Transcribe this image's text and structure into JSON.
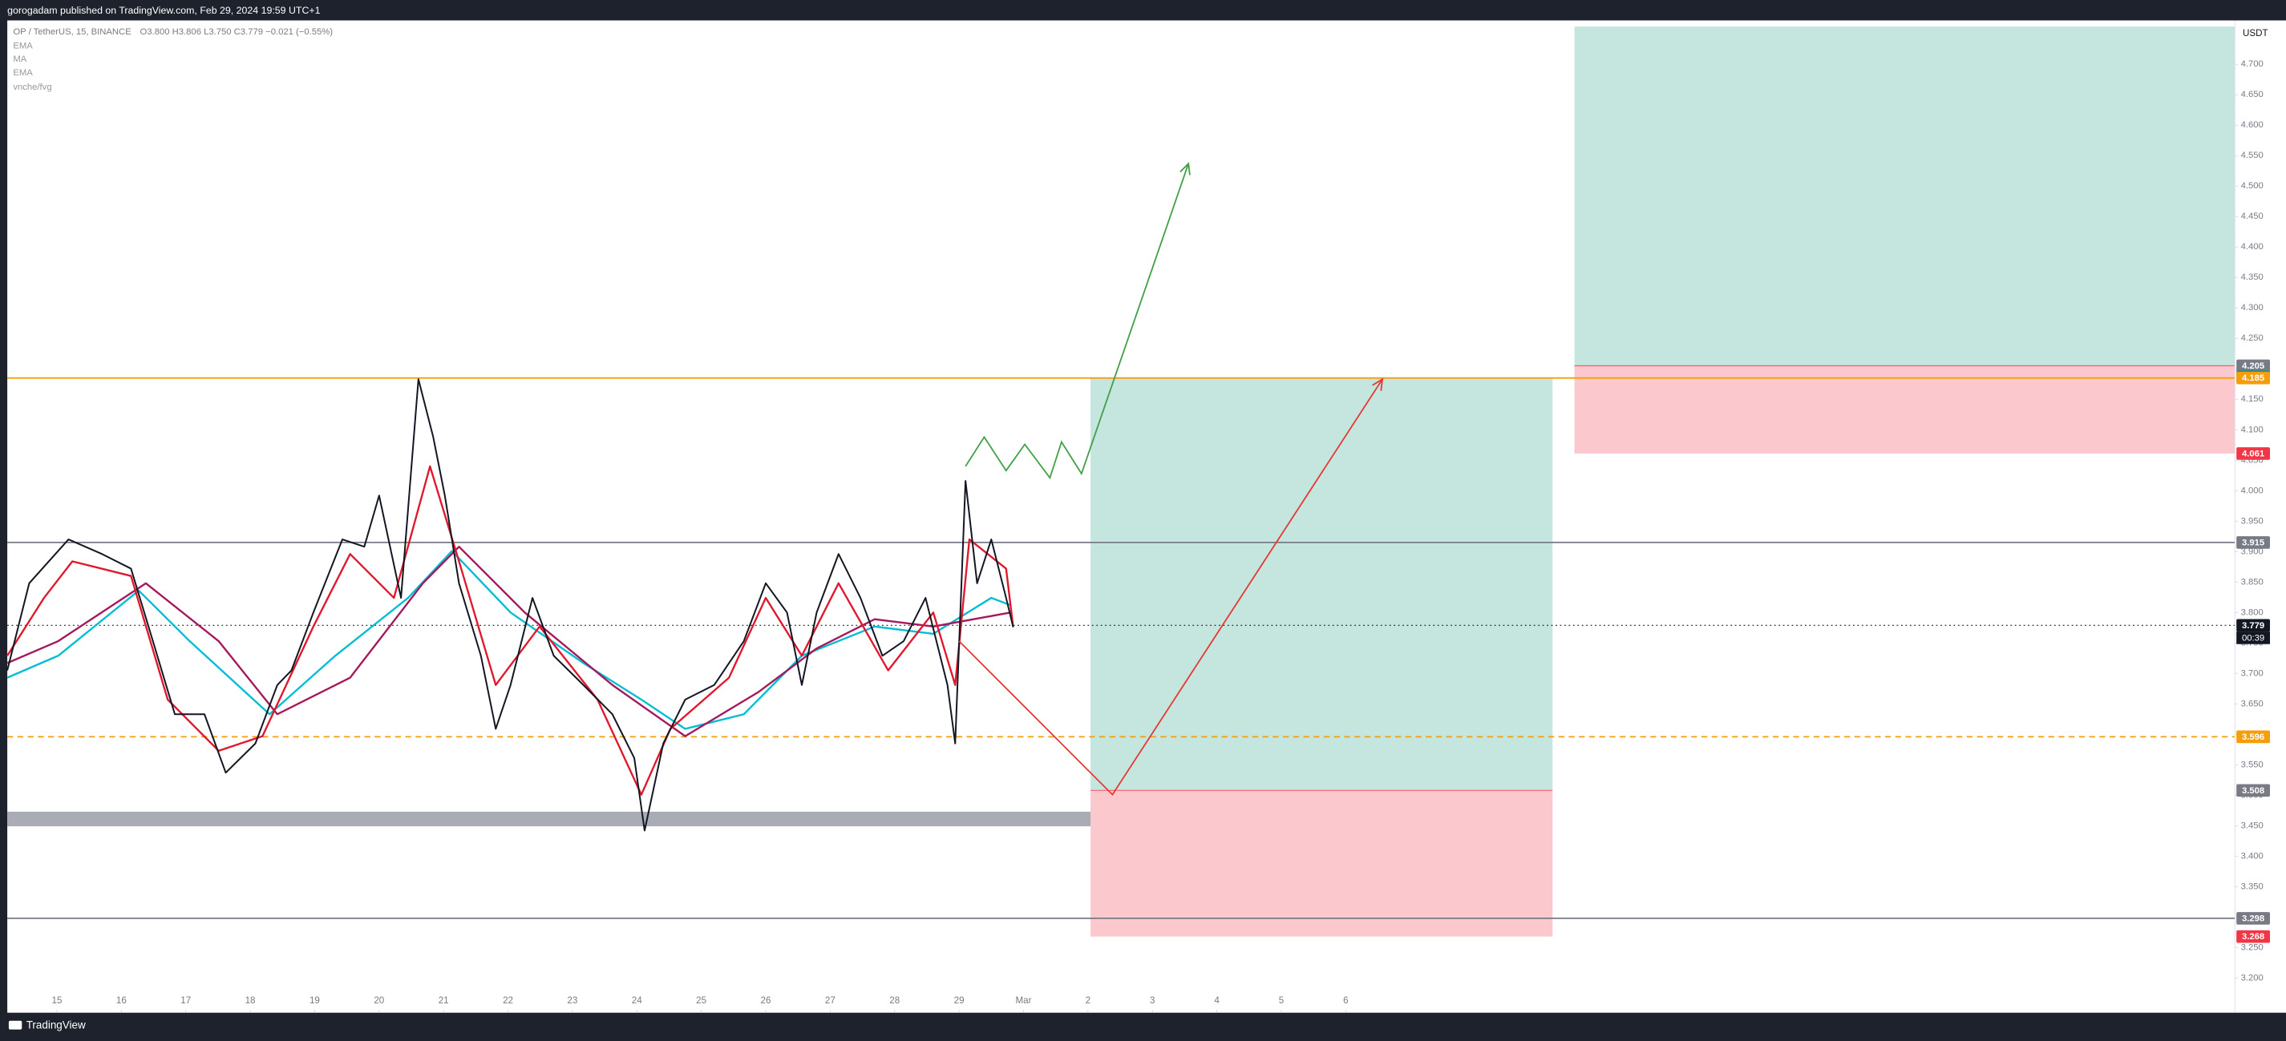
{
  "header": {
    "text": "gorogadam published on TradingView.com, Feb 29, 2024 19:59 UTC+1"
  },
  "footer": {
    "brand": "TradingView"
  },
  "chart_data": {
    "type": "line",
    "title": "OP / TetherUS, 15, BINANCE",
    "status": "O3.800 H3.806 L3.750 C3.779 −0.021 (−0.55%)",
    "extra_indicator": "vnche/fvg",
    "y_unit": "USDT",
    "countdown": "00:39",
    "xlim": [
      14.23,
      48.8
    ],
    "ylim": [
      3.143,
      4.772
    ],
    "xticks": [
      15,
      16,
      17,
      18,
      19,
      20,
      21,
      22,
      23,
      24,
      25,
      26,
      27,
      28,
      29,
      {
        "value": 30,
        "label": "Mar"
      },
      {
        "value": 31,
        "label": "2"
      },
      {
        "value": 32,
        "label": "3"
      },
      {
        "value": 33,
        "label": "4"
      },
      {
        "value": 34,
        "label": "5"
      },
      {
        "value": 35,
        "label": "6"
      }
    ],
    "yticks": [
      {
        "value": 3.2,
        "label": "3.200"
      },
      {
        "value": 3.25,
        "label": "3.250"
      },
      {
        "value": 3.3,
        "label": "3.300"
      },
      {
        "value": 3.35,
        "label": "3.350"
      },
      {
        "value": 3.4,
        "label": "3.400"
      },
      {
        "value": 3.45,
        "label": "3.450"
      },
      {
        "value": 3.5,
        "label": "3.500"
      },
      {
        "value": 3.55,
        "label": "3.550"
      },
      {
        "value": 3.6,
        "label": "3.600"
      },
      {
        "value": 3.65,
        "label": "3.650"
      },
      {
        "value": 3.7,
        "label": "3.700"
      },
      {
        "value": 3.75,
        "label": "3.750"
      },
      {
        "value": 3.8,
        "label": "3.800"
      },
      {
        "value": 3.85,
        "label": "3.850"
      },
      {
        "value": 3.9,
        "label": "3.900"
      },
      {
        "value": 3.95,
        "label": "3.950"
      },
      {
        "value": 4.0,
        "label": "4.000"
      },
      {
        "value": 4.05,
        "label": "4.050"
      },
      {
        "value": 4.1,
        "label": "4.100"
      },
      {
        "value": 4.15,
        "label": "4.150"
      },
      {
        "value": 4.2,
        "label": "4.200"
      },
      {
        "value": 4.25,
        "label": "4.250"
      },
      {
        "value": 4.3,
        "label": "4.300"
      },
      {
        "value": 4.35,
        "label": "4.350"
      },
      {
        "value": 4.4,
        "label": "4.400"
      },
      {
        "value": 4.45,
        "label": "4.450"
      },
      {
        "value": 4.5,
        "label": "4.500"
      },
      {
        "value": 4.55,
        "label": "4.550"
      },
      {
        "value": 4.6,
        "label": "4.600"
      },
      {
        "value": 4.65,
        "label": "4.650"
      },
      {
        "value": 4.7,
        "label": "4.700"
      }
    ],
    "price": {
      "color": "#131722",
      "x": [
        14.23,
        14.57,
        15.18,
        15.7,
        16.15,
        16.49,
        16.83,
        17.29,
        17.62,
        18.08,
        18.42,
        18.64,
        18.98,
        19.43,
        19.77,
        20.0,
        20.34,
        20.61,
        20.84,
        21.02,
        21.24,
        21.58,
        21.81,
        22.04,
        22.38,
        22.71,
        23.17,
        23.62,
        23.96,
        24.12,
        24.41,
        24.75,
        25.2,
        25.66,
        26.0,
        26.33,
        26.56,
        26.79,
        27.13,
        27.47,
        27.81,
        28.14,
        28.48,
        28.82,
        28.94,
        29.1,
        29.28,
        29.5,
        29.73,
        29.84
      ],
      "values": [
        3.705,
        3.848,
        3.92,
        3.896,
        3.872,
        3.753,
        3.633,
        3.633,
        3.537,
        3.585,
        3.681,
        3.705,
        3.8,
        3.92,
        3.908,
        3.992,
        3.824,
        4.183,
        4.088,
        3.992,
        3.848,
        3.729,
        3.609,
        3.681,
        3.824,
        3.729,
        3.681,
        3.633,
        3.561,
        3.442,
        3.585,
        3.657,
        3.681,
        3.753,
        3.848,
        3.8,
        3.681,
        3.8,
        3.896,
        3.824,
        3.729,
        3.753,
        3.824,
        3.681,
        3.585,
        4.016,
        3.848,
        3.92,
        3.824,
        3.776
      ]
    },
    "series": [
      {
        "name": "EMA",
        "color": "#00bcd4",
        "x": [
          14.23,
          15.02,
          16.27,
          17.06,
          18.3,
          19.32,
          20.45,
          21.13,
          22.04,
          23.17,
          24.07,
          24.75,
          25.66,
          26.56,
          27.69,
          28.6,
          29.5,
          29.8
        ],
        "values": [
          3.693,
          3.729,
          3.836,
          3.753,
          3.633,
          3.729,
          3.824,
          3.901,
          3.8,
          3.717,
          3.657,
          3.609,
          3.633,
          3.729,
          3.777,
          3.765,
          3.824,
          3.812
        ]
      },
      {
        "name": "MA",
        "color": "#a3195b",
        "x": [
          14.23,
          15.02,
          16.38,
          17.51,
          18.42,
          19.55,
          20.68,
          21.24,
          22.26,
          23.62,
          24.75,
          25.88,
          26.79,
          27.69,
          28.6,
          29.8
        ],
        "values": [
          3.717,
          3.753,
          3.848,
          3.753,
          3.633,
          3.693,
          3.848,
          3.908,
          3.8,
          3.681,
          3.597,
          3.669,
          3.741,
          3.789,
          3.777,
          3.8
        ]
      },
      {
        "name": "EMA",
        "color": "#e0182d",
        "x": [
          14.23,
          14.8,
          15.24,
          16.15,
          16.72,
          17.51,
          18.19,
          18.98,
          19.55,
          20.23,
          20.79,
          21.24,
          21.81,
          22.49,
          23.39,
          24.07,
          24.52,
          25.43,
          26.0,
          26.56,
          27.13,
          27.9,
          28.6,
          28.94,
          29.16,
          29.73,
          29.84
        ],
        "values": [
          3.729,
          3.824,
          3.884,
          3.86,
          3.657,
          3.573,
          3.597,
          3.777,
          3.896,
          3.824,
          4.04,
          3.884,
          3.681,
          3.777,
          3.657,
          3.501,
          3.609,
          3.693,
          3.824,
          3.729,
          3.848,
          3.705,
          3.8,
          3.681,
          3.92,
          3.872,
          3.776
        ]
      }
    ],
    "zones": [
      {
        "color": "#9a9ea8",
        "x": [
          14.23,
          32.9
        ],
        "y": [
          3.449,
          3.473
        ]
      }
    ],
    "positions": [
      {
        "x": [
          31.04,
          38.21
        ],
        "entry": 3.508,
        "target": 4.185,
        "stop": 3.268
      },
      {
        "x": [
          38.55,
          48.8
        ],
        "entry": 4.205,
        "target": 4.762,
        "stop": 4.061
      }
    ],
    "drawings": [
      {
        "color": "#43a047",
        "x": [
          29.1,
          29.39,
          29.73,
          30.02,
          30.41,
          30.59,
          30.9,
          32.56
        ],
        "values": [
          4.04,
          4.088,
          4.033,
          4.076,
          4.021,
          4.08,
          4.028,
          4.537
        ]
      },
      {
        "color": "#e53935",
        "x": [
          29.0,
          31.38,
          35.57
        ],
        "values": [
          3.753,
          3.501,
          4.183
        ]
      }
    ],
    "levels": [
      {
        "value": 4.205,
        "color": "#787b86",
        "line": null
      },
      {
        "value": 4.187,
        "color": "#089981",
        "line": null
      },
      {
        "value": 4.185,
        "color": "#f59d0b",
        "line": "solid"
      },
      {
        "value": 4.061,
        "color": "#f23645",
        "line": null
      },
      {
        "value": 3.915,
        "color": "#787b86",
        "line": "solid"
      },
      {
        "value": 3.779,
        "color": "#131722",
        "line": "dotted"
      },
      {
        "value": 3.596,
        "color": "#f59d0b",
        "line": "dashed"
      },
      {
        "value": 3.508,
        "color": "#787b86",
        "line": null
      },
      {
        "value": 3.298,
        "color": "#787b86",
        "line": "solid"
      },
      {
        "value": 3.268,
        "color": "#f23645",
        "line": null
      }
    ]
  }
}
